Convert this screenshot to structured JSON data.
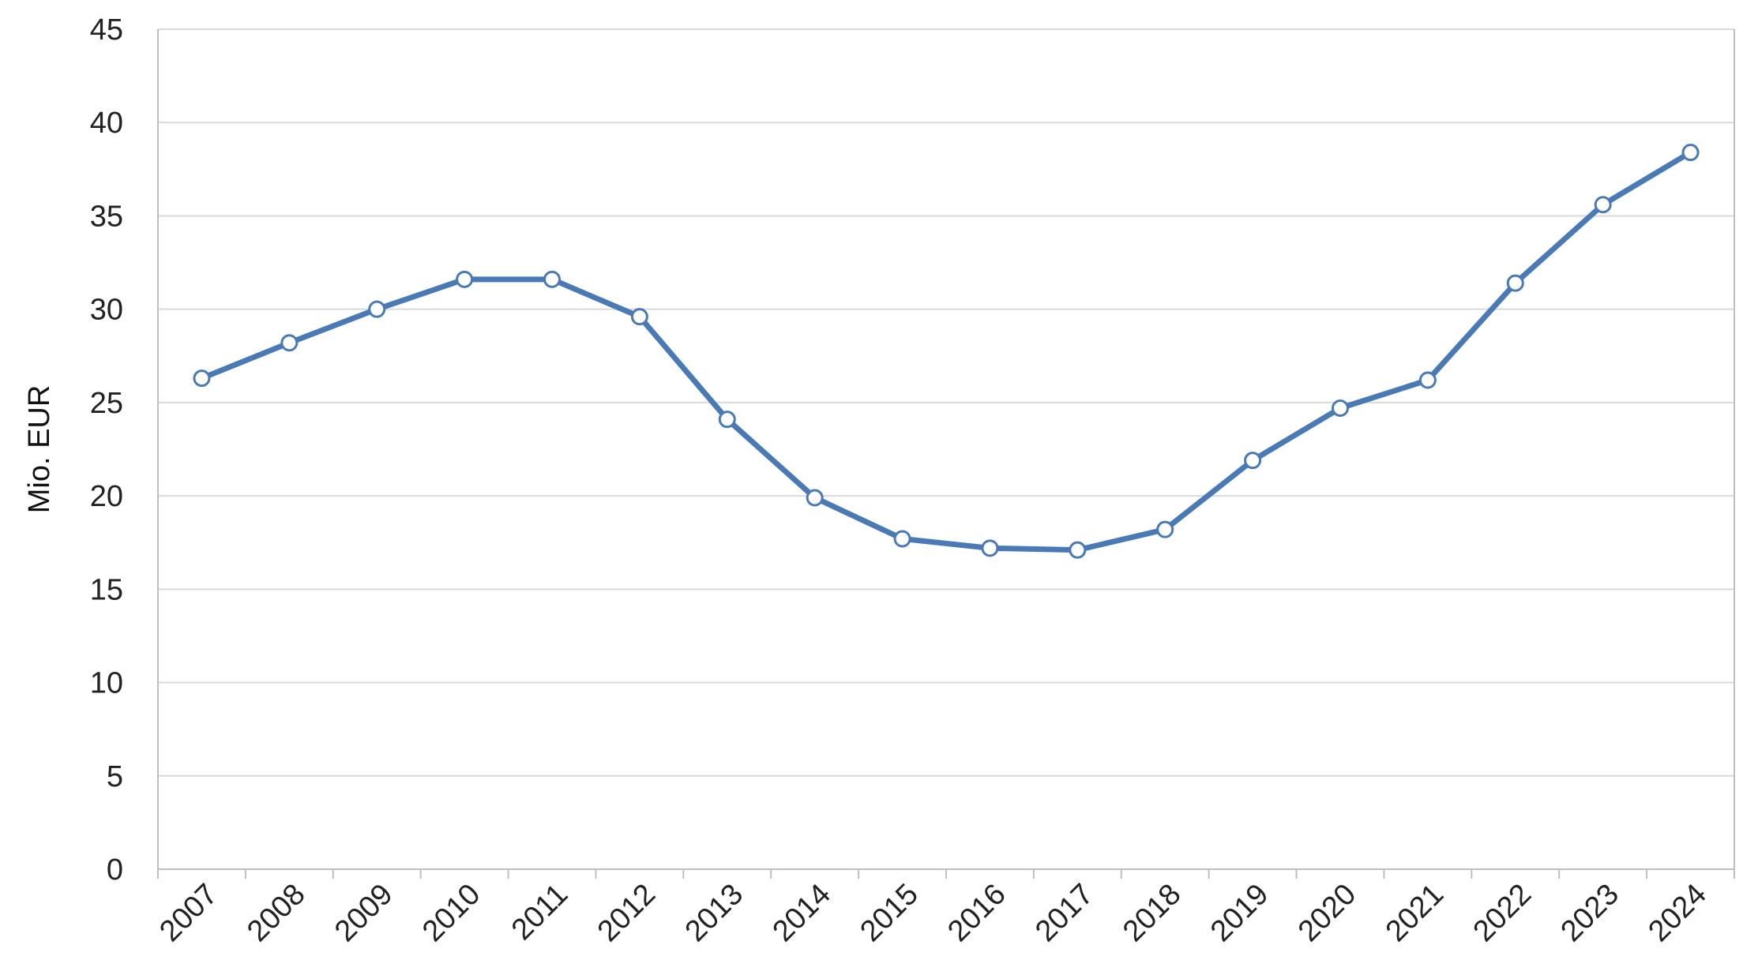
{
  "chart_data": {
    "type": "line",
    "title": "",
    "xlabel": "",
    "ylabel": "Mio. EUR",
    "ylim": [
      0,
      45
    ],
    "yticks": [
      0,
      5,
      10,
      15,
      20,
      25,
      30,
      35,
      40,
      45
    ],
    "grid": true,
    "legend": "none",
    "categories": [
      "2007",
      "2008",
      "2009",
      "2010",
      "2011",
      "2012",
      "2013",
      "2014",
      "2015",
      "2016",
      "2017",
      "2018",
      "2019",
      "2020",
      "2021",
      "2022",
      "2023",
      "2024"
    ],
    "series": [
      {
        "color": "#4a7ab5",
        "values": [
          26.3,
          28.2,
          30.0,
          31.6,
          31.6,
          29.6,
          24.1,
          19.9,
          17.7,
          17.2,
          17.1,
          18.2,
          21.9,
          24.7,
          26.2,
          31.4,
          35.6,
          38.4
        ]
      }
    ]
  }
}
